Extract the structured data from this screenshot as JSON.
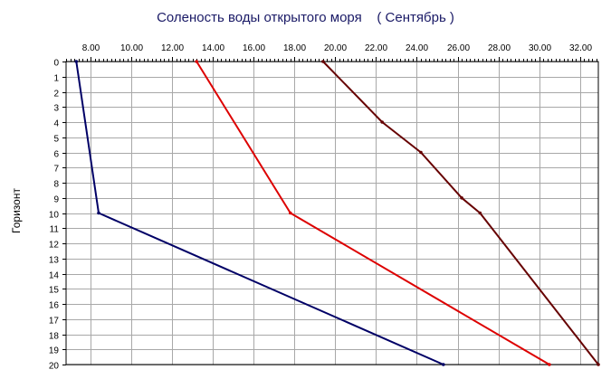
{
  "chart_data": {
    "type": "line",
    "title": "Соленость воды открытого моря    ( Сентябрь )",
    "xlabel": "",
    "ylabel": "Горизонт",
    "x_ticks": [
      "8.00",
      "10.00",
      "12.00",
      "14.00",
      "16.00",
      "18.00",
      "20.00",
      "22.00",
      "24.00",
      "26.00",
      "28.00",
      "30.00",
      "32.00"
    ],
    "y_ticks": [
      "0",
      "1",
      "2",
      "3",
      "4",
      "5",
      "6",
      "7",
      "8",
      "9",
      "10",
      "11",
      "12",
      "13",
      "14",
      "15",
      "16",
      "17",
      "18",
      "19",
      "20"
    ],
    "xlim": [
      6.8,
      32.9
    ],
    "ylim": [
      0,
      20
    ],
    "y_inverted": true,
    "x_axis_position": "top",
    "grid": true,
    "legend": "none",
    "series": [
      {
        "color": "#000066",
        "points": [
          [
            7.3,
            0
          ],
          [
            8.4,
            10
          ],
          [
            25.3,
            20
          ]
        ]
      },
      {
        "color": "#dd0000",
        "points": [
          [
            13.2,
            0
          ],
          [
            17.8,
            10
          ],
          [
            30.5,
            20
          ]
        ]
      },
      {
        "color": "#660000",
        "points": [
          [
            19.4,
            0
          ],
          [
            22.3,
            4
          ],
          [
            24.2,
            6
          ],
          [
            26.2,
            9
          ],
          [
            27.1,
            10
          ],
          [
            32.9,
            20
          ]
        ]
      }
    ]
  }
}
